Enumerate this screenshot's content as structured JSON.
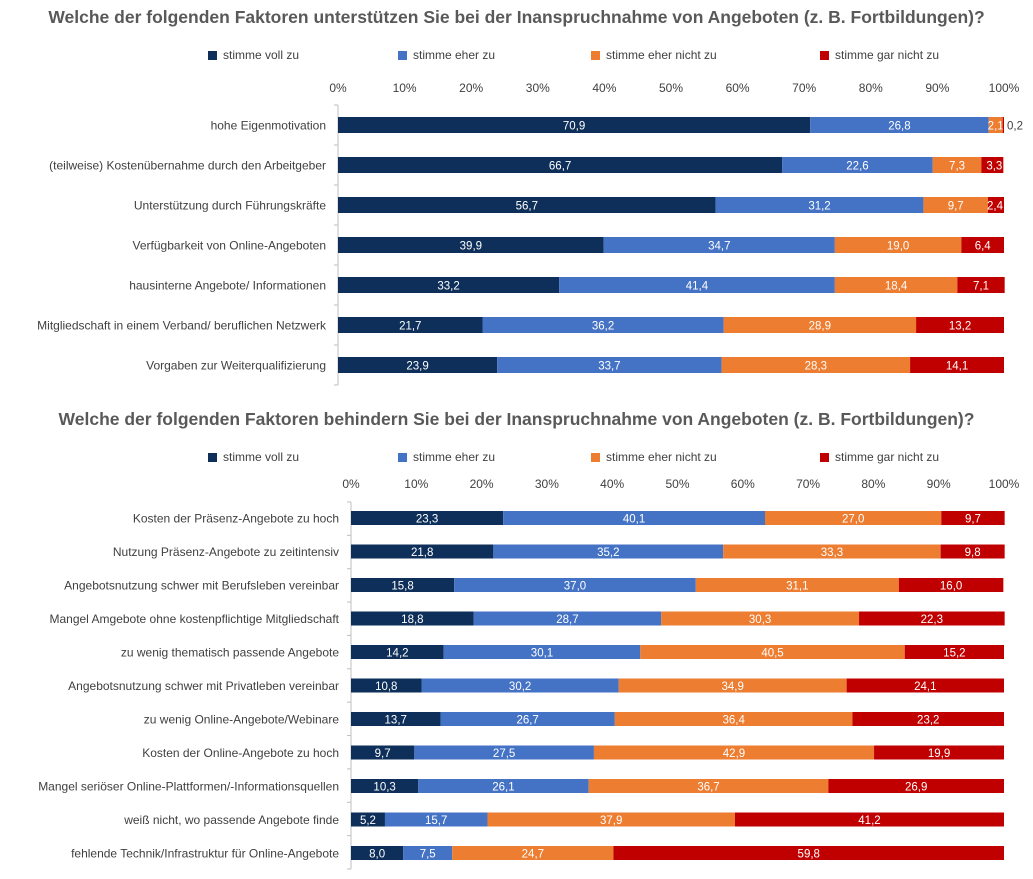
{
  "colors": {
    "stimme_voll_zu": "#0d2f5a",
    "stimme_eher_zu": "#4472c4",
    "stimme_eher_nicht_zu": "#ed7d31",
    "stimme_gar_nicht_zu": "#c00000"
  },
  "chart_data": [
    {
      "type": "bar",
      "orientation": "horizontal",
      "stacked": "percent",
      "title": "Welche der folgenden Faktoren unterstützen Sie bei der Inanspruchnahme von Angeboten (z. B. Fortbildungen)?",
      "legend": [
        "stimme voll zu",
        "stimme eher zu",
        "stimme eher nicht zu",
        "stimme gar nicht zu"
      ],
      "legend_position": "top",
      "x_ticks": [
        "0%",
        "10%",
        "20%",
        "30%",
        "40%",
        "50%",
        "60%",
        "70%",
        "80%",
        "90%",
        "100%"
      ],
      "xlim": [
        0,
        100
      ],
      "categories": [
        "hohe Eigenmotivation",
        "(teilweise) Kostenübernahme durch den Arbeitgeber",
        "Unterstützung durch Führungskräfte",
        "Verfügbarkeit von Online-Angeboten",
        "hausinterne Angebote/ Informationen",
        "Mitgliedschaft in einem Verband/ beruflichen Netzwerk",
        "Vorgaben zur Weiterqualifizierung"
      ],
      "series": [
        {
          "name": "stimme voll zu",
          "values": [
            70.9,
            66.7,
            56.7,
            39.9,
            33.2,
            21.7,
            23.9
          ],
          "labels": [
            "70,9",
            "66,7",
            "56,7",
            "39,9",
            "33,2",
            "21,7",
            "23,9"
          ]
        },
        {
          "name": "stimme eher zu",
          "values": [
            26.8,
            22.6,
            31.2,
            34.7,
            41.4,
            36.2,
            33.7
          ],
          "labels": [
            "26,8",
            "22,6",
            "31,2",
            "34,7",
            "41,4",
            "36,2",
            "33,7"
          ]
        },
        {
          "name": "stimme eher nicht zu",
          "values": [
            2.1,
            7.3,
            9.7,
            19.0,
            18.4,
            28.9,
            28.3
          ],
          "labels": [
            "2,1",
            "7,3",
            "9,7",
            "19,0",
            "18,4",
            "28,9",
            "28,3"
          ]
        },
        {
          "name": "stimme gar nicht zu",
          "values": [
            0.2,
            3.3,
            2.4,
            6.4,
            7.1,
            13.2,
            14.1
          ],
          "labels": [
            "0,2",
            "3,3",
            "2,4",
            "6,4",
            "7,1",
            "13,2",
            "14,1"
          ]
        }
      ]
    },
    {
      "type": "bar",
      "orientation": "horizontal",
      "stacked": "percent",
      "title": "Welche der folgenden Faktoren behindern Sie bei der Inanspruchnahme von Angeboten (z. B. Fortbildungen)?",
      "legend": [
        "stimme voll zu",
        "stimme eher zu",
        "stimme eher nicht zu",
        "stimme gar nicht zu"
      ],
      "legend_position": "top",
      "x_ticks": [
        "0%",
        "10%",
        "20%",
        "30%",
        "40%",
        "50%",
        "60%",
        "70%",
        "80%",
        "90%",
        "100%"
      ],
      "xlim": [
        0,
        100
      ],
      "categories": [
        "Kosten der Präsenz-Angebote zu hoch",
        "Nutzung Präsenz-Angebote  zu zeitintensiv",
        "Angebotsnutzung schwer mit Berufsleben vereinbar",
        "Mangel Amgebote ohne kostenpflichtige Mitgliedschaft",
        "zu wenig thematisch passende Angebote",
        "Angebotsnutzung schwer mit Privatleben vereinbar",
        "zu wenig Online-Angebote/Webinare",
        "Kosten der Online-Angebote zu hoch",
        "Mangel seriöser Online-Plattformen/-Informationsquellen",
        "weiß nicht, wo passende Angebote finde",
        "fehlende Technik/Infrastruktur für Online-Angebote"
      ],
      "series": [
        {
          "name": "stimme voll zu",
          "values": [
            23.3,
            21.8,
            15.8,
            18.8,
            14.2,
            10.8,
            13.7,
            9.7,
            10.3,
            5.2,
            8.0
          ],
          "labels": [
            "23,3",
            "21,8",
            "15,8",
            "18,8",
            "14,2",
            "10,8",
            "13,7",
            "9,7",
            "10,3",
            "5,2",
            "8,0"
          ]
        },
        {
          "name": "stimme eher zu",
          "values": [
            40.1,
            35.2,
            37.0,
            28.7,
            30.1,
            30.2,
            26.7,
            27.5,
            26.1,
            15.7,
            7.5
          ],
          "labels": [
            "40,1",
            "35,2",
            "37,0",
            "28,7",
            "30,1",
            "30,2",
            "26,7",
            "27,5",
            "26,1",
            "15,7",
            "7,5"
          ]
        },
        {
          "name": "stimme eher nicht zu",
          "values": [
            27.0,
            33.3,
            31.1,
            30.3,
            40.5,
            34.9,
            36.4,
            42.9,
            36.7,
            37.9,
            24.7
          ],
          "labels": [
            "27,0",
            "33,3",
            "31,1",
            "30,3",
            "40,5",
            "34,9",
            "36,4",
            "42,9",
            "36,7",
            "37,9",
            "24,7"
          ]
        },
        {
          "name": "stimme gar nicht zu",
          "values": [
            9.7,
            9.8,
            16.0,
            22.3,
            15.2,
            24.1,
            23.2,
            19.9,
            26.9,
            41.2,
            59.8
          ],
          "labels": [
            "9,7",
            "9,8",
            "16,0",
            "22,3",
            "15,2",
            "24,1",
            "23,2",
            "19,9",
            "26,9",
            "41,2",
            "59,8"
          ]
        }
      ]
    }
  ]
}
